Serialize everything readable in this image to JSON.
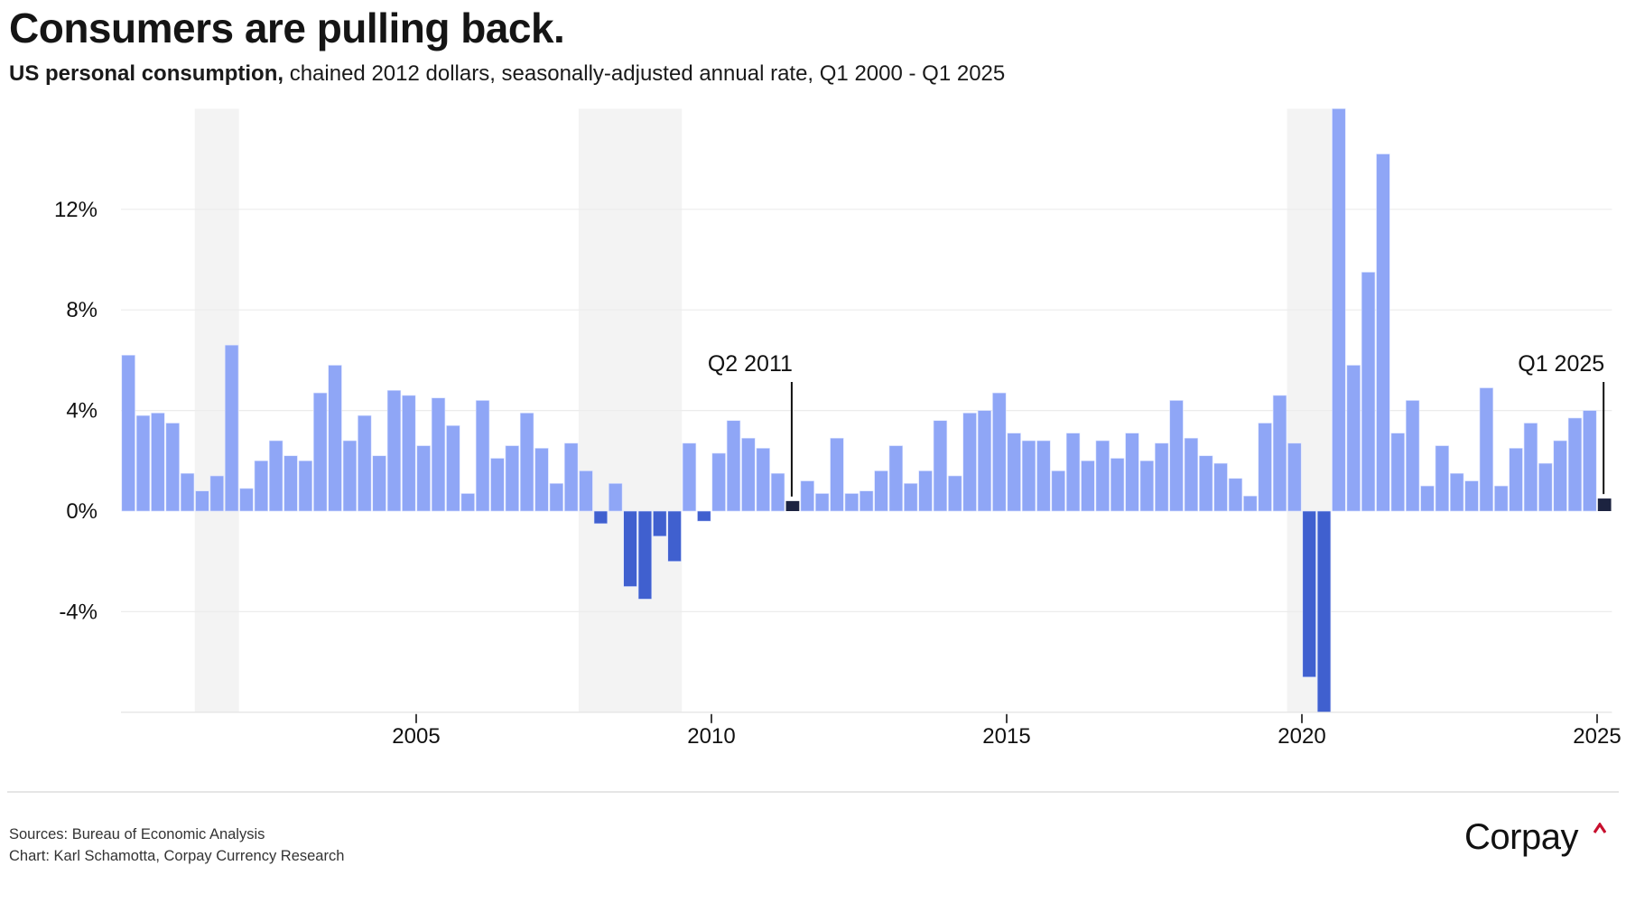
{
  "header": {
    "title": "Consumers are pulling back.",
    "subtitle_bold": "US personal consumption,",
    "subtitle_rest": " chained 2012 dollars, seasonally-adjusted annual rate, Q1 2000 - Q1 2025"
  },
  "footer": {
    "sources": "Sources: Bureau of Economic Analysis",
    "credit": "Chart: Karl Schamotta, Corpay Currency Research",
    "logo_text": "Corpay"
  },
  "colors": {
    "positive": "#8fa6f6",
    "negative": "#4060cf",
    "highlight": "#1c2340",
    "recession_shading": "#f3f3f3",
    "gridline": "#ececec",
    "logo_caret": "#c8102e"
  },
  "chart_data": {
    "type": "bar",
    "title": "Consumers are pulling back.",
    "subtitle": "US personal consumption, chained 2012 dollars, seasonally-adjusted annual rate, Q1 2000 - Q1 2025",
    "xlabel": "",
    "ylabel": "",
    "start_year": 2000,
    "start_quarter": 1,
    "ylim": [
      -8,
      16
    ],
    "yticks": [
      -4,
      0,
      4,
      8,
      12
    ],
    "ytick_labels": [
      "-4%",
      "0%",
      "4%",
      "8%",
      "12%"
    ],
    "xticks": [
      2005,
      2010,
      2015,
      2020,
      2025
    ],
    "xtick_labels": [
      "2005",
      "2010",
      "2015",
      "2020",
      "2025"
    ],
    "grid": true,
    "values": [
      6.2,
      3.8,
      3.9,
      3.5,
      1.5,
      0.8,
      1.4,
      6.6,
      0.9,
      2.0,
      2.8,
      2.2,
      2.0,
      4.7,
      5.8,
      2.8,
      3.8,
      2.2,
      4.8,
      4.6,
      2.6,
      4.5,
      3.4,
      0.7,
      4.4,
      2.1,
      2.6,
      3.9,
      2.5,
      1.1,
      2.7,
      1.6,
      -0.5,
      1.1,
      -3.0,
      -3.5,
      -1.0,
      -2.0,
      2.7,
      -0.4,
      2.3,
      3.6,
      2.9,
      2.5,
      1.5,
      0.4,
      1.2,
      0.7,
      2.9,
      0.7,
      0.8,
      1.6,
      2.6,
      1.1,
      1.6,
      3.6,
      1.4,
      3.9,
      4.0,
      4.7,
      3.1,
      2.8,
      2.8,
      1.6,
      3.1,
      2.0,
      2.8,
      2.1,
      3.1,
      2.0,
      2.7,
      4.4,
      2.9,
      2.2,
      1.9,
      1.3,
      0.6,
      3.5,
      4.6,
      2.7,
      -6.6,
      -8.0,
      16.0,
      5.8,
      9.5,
      14.2,
      3.1,
      4.4,
      1.0,
      2.6,
      1.5,
      1.2,
      4.9,
      1.0,
      2.5,
      3.5,
      1.9,
      2.8,
      3.7,
      4.0,
      0.5
    ],
    "recessions": [
      {
        "start": "Q2 2001",
        "end": "Q4 2001"
      },
      {
        "start": "Q4 2007",
        "end": "Q2 2009"
      },
      {
        "start": "Q4 2019",
        "end": "Q2 2020"
      }
    ],
    "annotations": [
      {
        "label": "Q2 2011",
        "index": 45
      },
      {
        "label": "Q1 2025",
        "index": 100
      }
    ]
  }
}
